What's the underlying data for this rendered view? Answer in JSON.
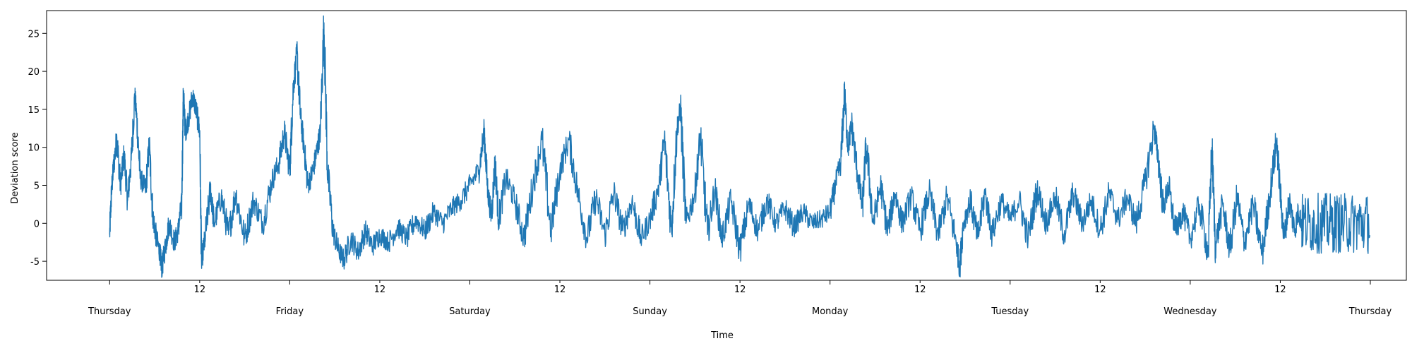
{
  "chart_data": {
    "type": "line",
    "title": "",
    "xlabel": "Time",
    "ylabel": "Deviation score",
    "ylim": [
      -7.5,
      28
    ],
    "yticks": [
      -5,
      0,
      5,
      10,
      15,
      20,
      25
    ],
    "xlim": [
      -0.35,
      7.2
    ],
    "x_unit": "days from Thursday 00:00",
    "major_ticks": [
      {
        "x": 0,
        "label": "Thursday"
      },
      {
        "x": 1,
        "label": "Friday"
      },
      {
        "x": 2,
        "label": "Saturday"
      },
      {
        "x": 3,
        "label": "Sunday"
      },
      {
        "x": 4,
        "label": "Monday"
      },
      {
        "x": 5,
        "label": "Tuesday"
      },
      {
        "x": 6,
        "label": "Wednesday"
      },
      {
        "x": 7,
        "label": "Thursday"
      }
    ],
    "minor_ticks": [
      {
        "x": 0.5,
        "label": "12"
      },
      {
        "x": 1.5,
        "label": "12"
      },
      {
        "x": 2.5,
        "label": "12"
      },
      {
        "x": 3.5,
        "label": "12"
      },
      {
        "x": 4.5,
        "label": "12"
      },
      {
        "x": 5.5,
        "label": "12"
      },
      {
        "x": 6.5,
        "label": "12"
      }
    ],
    "grid": false,
    "legend": "none",
    "line_color": "#1f77b4",
    "series": [
      {
        "note": "dense noisy signal; envelope/key points listed (day, value)",
        "points": [
          [
            0.0,
            -1.5
          ],
          [
            0.01,
            4.0
          ],
          [
            0.02,
            7.0
          ],
          [
            0.04,
            11.3
          ],
          [
            0.06,
            5.0
          ],
          [
            0.08,
            9.0
          ],
          [
            0.1,
            3.0
          ],
          [
            0.12,
            8.3
          ],
          [
            0.14,
            16.8
          ],
          [
            0.15,
            14.0
          ],
          [
            0.17,
            6.0
          ],
          [
            0.2,
            4.5
          ],
          [
            0.22,
            10.3
          ],
          [
            0.24,
            1.0
          ],
          [
            0.26,
            -2.0
          ],
          [
            0.28,
            -4.0
          ],
          [
            0.29,
            -5.9
          ],
          [
            0.31,
            -3.0
          ],
          [
            0.33,
            0.0
          ],
          [
            0.36,
            -2.5
          ],
          [
            0.38,
            -1.0
          ],
          [
            0.4,
            2.5
          ],
          [
            0.41,
            17.3
          ],
          [
            0.42,
            12.0
          ],
          [
            0.44,
            14.0
          ],
          [
            0.46,
            16.8
          ],
          [
            0.48,
            15.0
          ],
          [
            0.5,
            12.0
          ],
          [
            0.51,
            -5.0
          ],
          [
            0.53,
            -2.0
          ],
          [
            0.56,
            4.5
          ],
          [
            0.58,
            0.0
          ],
          [
            0.62,
            3.5
          ],
          [
            0.66,
            -1.5
          ],
          [
            0.7,
            4.0
          ],
          [
            0.75,
            -2.0
          ],
          [
            0.8,
            3.0
          ],
          [
            0.85,
            0.0
          ],
          [
            0.9,
            5.5
          ],
          [
            0.94,
            8.0
          ],
          [
            0.97,
            12.0
          ],
          [
            1.0,
            7.0
          ],
          [
            1.02,
            18.0
          ],
          [
            1.04,
            22.3
          ],
          [
            1.06,
            14.0
          ],
          [
            1.08,
            10.0
          ],
          [
            1.1,
            5.0
          ],
          [
            1.13,
            7.0
          ],
          [
            1.15,
            9.5
          ],
          [
            1.17,
            12.0
          ],
          [
            1.19,
            26.4
          ],
          [
            1.21,
            7.0
          ],
          [
            1.24,
            -1.0
          ],
          [
            1.27,
            -3.5
          ],
          [
            1.3,
            -4.8
          ],
          [
            1.34,
            -2.0
          ],
          [
            1.38,
            -3.8
          ],
          [
            1.42,
            -1.0
          ],
          [
            1.46,
            -3.0
          ],
          [
            1.5,
            -1.5
          ],
          [
            1.55,
            -2.5
          ],
          [
            1.6,
            -0.5
          ],
          [
            1.65,
            -2.0
          ],
          [
            1.7,
            0.5
          ],
          [
            1.75,
            -1.0
          ],
          [
            1.8,
            1.5
          ],
          [
            1.85,
            0.0
          ],
          [
            1.9,
            2.0
          ],
          [
            1.95,
            3.0
          ],
          [
            2.0,
            5.0
          ],
          [
            2.05,
            7.0
          ],
          [
            2.08,
            12.0
          ],
          [
            2.1,
            4.0
          ],
          [
            2.12,
            1.0
          ],
          [
            2.14,
            8.0
          ],
          [
            2.16,
            0.5
          ],
          [
            2.2,
            6.0
          ],
          [
            2.25,
            3.0
          ],
          [
            2.3,
            -2.0
          ],
          [
            2.35,
            5.0
          ],
          [
            2.4,
            11.0
          ],
          [
            2.45,
            -1.0
          ],
          [
            2.5,
            7.0
          ],
          [
            2.55,
            11.0
          ],
          [
            2.6,
            4.0
          ],
          [
            2.65,
            -2.0
          ],
          [
            2.7,
            3.5
          ],
          [
            2.75,
            -1.5
          ],
          [
            2.8,
            4.0
          ],
          [
            2.85,
            -1.0
          ],
          [
            2.9,
            3.0
          ],
          [
            2.95,
            -2.0
          ],
          [
            3.0,
            0.5
          ],
          [
            3.05,
            5.0
          ],
          [
            3.08,
            11.0
          ],
          [
            3.12,
            -1.0
          ],
          [
            3.15,
            12.5
          ],
          [
            3.17,
            15.0
          ],
          [
            3.2,
            0.0
          ],
          [
            3.25,
            4.0
          ],
          [
            3.28,
            11.5
          ],
          [
            3.32,
            -1.5
          ],
          [
            3.36,
            4.5
          ],
          [
            3.4,
            -2.0
          ],
          [
            3.45,
            3.0
          ],
          [
            3.5,
            -3.5
          ],
          [
            3.55,
            2.5
          ],
          [
            3.6,
            -1.0
          ],
          [
            3.65,
            3.0
          ],
          [
            3.7,
            0.0
          ],
          [
            3.75,
            2.0
          ],
          [
            3.8,
            -0.5
          ],
          [
            3.85,
            1.5
          ],
          [
            3.9,
            0.0
          ],
          [
            3.95,
            0.5
          ],
          [
            4.0,
            1.5
          ],
          [
            4.03,
            5.0
          ],
          [
            4.06,
            8.0
          ],
          [
            4.08,
            17.1
          ],
          [
            4.1,
            10.0
          ],
          [
            4.12,
            13.0
          ],
          [
            4.15,
            7.0
          ],
          [
            4.18,
            2.0
          ],
          [
            4.2,
            10.5
          ],
          [
            4.24,
            0.0
          ],
          [
            4.28,
            5.0
          ],
          [
            4.32,
            -1.0
          ],
          [
            4.36,
            4.0
          ],
          [
            4.4,
            0.0
          ],
          [
            4.45,
            3.5
          ],
          [
            4.5,
            -1.0
          ],
          [
            4.55,
            4.0
          ],
          [
            4.6,
            -1.5
          ],
          [
            4.65,
            3.5
          ],
          [
            4.7,
            -2.5
          ],
          [
            4.72,
            -5.8
          ],
          [
            4.74,
            0.0
          ],
          [
            4.78,
            3.0
          ],
          [
            4.82,
            -2.0
          ],
          [
            4.86,
            4.0
          ],
          [
            4.9,
            -1.5
          ],
          [
            4.95,
            3.0
          ],
          [
            5.0,
            0.5
          ],
          [
            5.05,
            3.0
          ],
          [
            5.1,
            -2.0
          ],
          [
            5.15,
            4.5
          ],
          [
            5.2,
            0.0
          ],
          [
            5.25,
            3.5
          ],
          [
            5.3,
            -1.5
          ],
          [
            5.35,
            4.0
          ],
          [
            5.4,
            0.0
          ],
          [
            5.45,
            3.0
          ],
          [
            5.5,
            -1.0
          ],
          [
            5.55,
            4.0
          ],
          [
            5.6,
            0.5
          ],
          [
            5.65,
            3.5
          ],
          [
            5.7,
            0.0
          ],
          [
            5.75,
            5.5
          ],
          [
            5.8,
            12.5
          ],
          [
            5.82,
            9.0
          ],
          [
            5.85,
            2.0
          ],
          [
            5.88,
            5.0
          ],
          [
            5.91,
            0.0
          ],
          [
            5.93,
            -0.5
          ],
          [
            5.96,
            1.5
          ],
          [
            6.0,
            -2.0
          ],
          [
            6.05,
            2.5
          ],
          [
            6.1,
            -4.0
          ],
          [
            6.12,
            10.0
          ],
          [
            6.14,
            -3.0
          ],
          [
            6.18,
            2.5
          ],
          [
            6.22,
            -3.5
          ],
          [
            6.26,
            3.5
          ],
          [
            6.3,
            -2.5
          ],
          [
            6.35,
            2.5
          ],
          [
            6.4,
            -4.0
          ],
          [
            6.44,
            3.5
          ],
          [
            6.48,
            11.0
          ],
          [
            6.5,
            4.0
          ],
          [
            6.52,
            -2.0
          ],
          [
            6.55,
            3.0
          ],
          [
            6.58,
            -1.0
          ],
          [
            6.6,
            1.5
          ],
          [
            6.62,
            0.0
          ]
        ]
      }
    ]
  }
}
